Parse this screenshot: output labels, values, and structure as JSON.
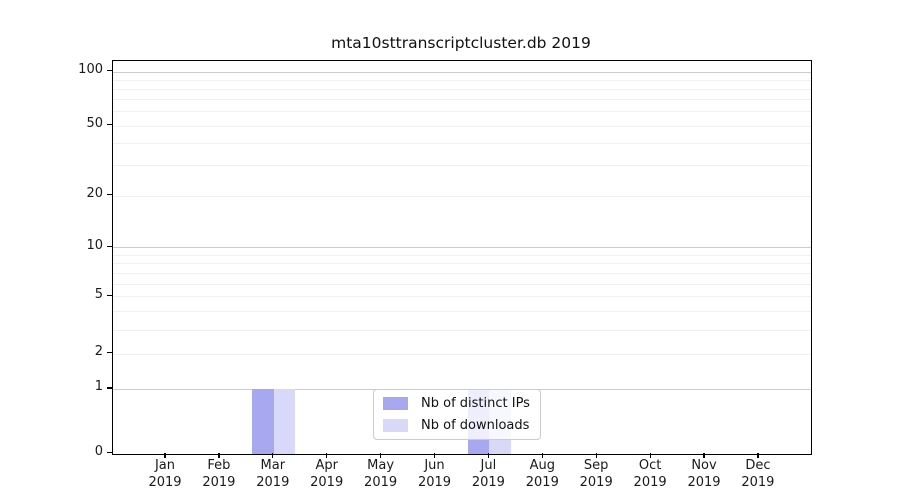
{
  "chart_data": {
    "type": "bar",
    "title": "mta10sttranscriptcluster.db 2019",
    "categories": [
      "Jan",
      "Feb",
      "Mar",
      "Apr",
      "May",
      "Jun",
      "Jul",
      "Aug",
      "Sep",
      "Oct",
      "Nov",
      "Dec"
    ],
    "year_label": "2019",
    "series": [
      {
        "name": "Nb of distinct IPs",
        "color": "#a8a8f0",
        "values": [
          0,
          0,
          1,
          0,
          0,
          0,
          1,
          0,
          0,
          0,
          0,
          0
        ]
      },
      {
        "name": "Nb of downloads",
        "color": "#d8d8f8",
        "values": [
          0,
          0,
          1,
          0,
          0,
          0,
          1,
          0,
          0,
          0,
          0,
          0
        ]
      }
    ],
    "xlabel": "",
    "ylabel": "",
    "yscale": "log-like (symlog, 0 shown at axis bottom)",
    "ylim": [
      0,
      114
    ],
    "yticks": [
      0,
      1,
      2,
      5,
      10,
      20,
      50,
      100
    ],
    "ygrid_major": [
      1,
      10,
      100
    ],
    "ygrid_minor": [
      2,
      3,
      4,
      5,
      6,
      7,
      8,
      9,
      20,
      30,
      40,
      50,
      60,
      70,
      80,
      90
    ],
    "grid": "horizontal only",
    "legend": {
      "position": "lower center",
      "items": [
        "Nb of distinct IPs",
        "Nb of downloads"
      ]
    },
    "colors": {
      "bar_distinct_ips": "#a8a8f0",
      "bar_downloads": "#d8d8f8",
      "grid_major": "#cccccc",
      "grid_minor": "#efefef",
      "spine": "#000000"
    }
  }
}
